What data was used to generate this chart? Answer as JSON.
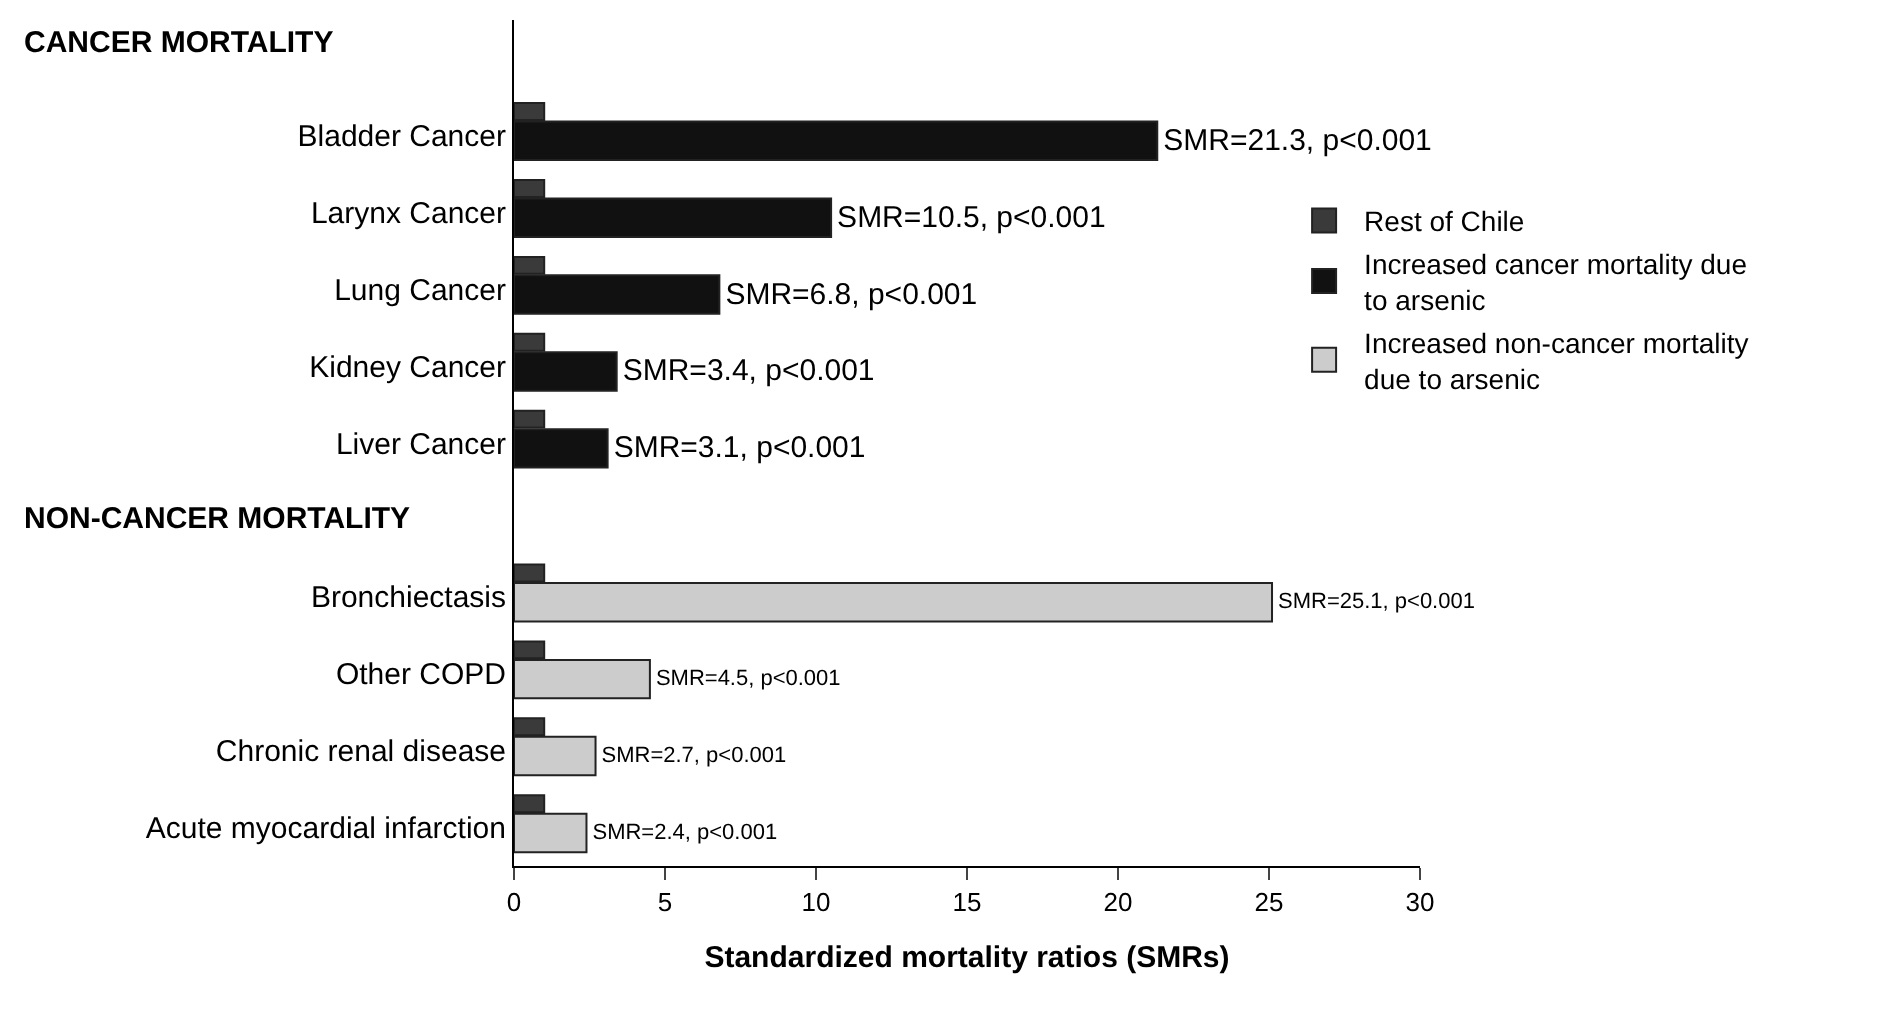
{
  "chart_data": {
    "type": "bar",
    "orientation": "horizontal",
    "xlabel": "Standardized mortality ratios (SMRs)",
    "categories": [
      "Bladder Cancer",
      "Larynx Cancer",
      "Lung Cancer",
      "Kidney Cancer",
      "Liver Cancer",
      null,
      "Bronchiectasis",
      "Other COPD",
      "Chronic renal disease",
      "Acute myocardial infarction"
    ],
    "series": [
      {
        "name": "Rest of Chile",
        "color": "#3a3a3a",
        "values": [
          1,
          1,
          1,
          1,
          1,
          null,
          1,
          1,
          1,
          1
        ]
      },
      {
        "name": "Increased cancer mortality due to arsenic",
        "color": "#111111",
        "values": [
          21.3,
          10.5,
          6.8,
          3.4,
          3.1,
          null,
          null,
          null,
          null,
          null
        ],
        "value_labels": [
          "SMR=21.3, p<0.001",
          "SMR=10.5, p<0.001",
          "SMR=6.8, p<0.001",
          "SMR=3.4, p<0.001",
          "SMR=3.1, p<0.001",
          null,
          null,
          null,
          null,
          null
        ]
      },
      {
        "name": "Increased non-cancer mortality due to arsenic",
        "color": "#cccccc",
        "values": [
          null,
          null,
          null,
          null,
          null,
          null,
          25.1,
          4.5,
          2.7,
          2.4
        ],
        "value_labels": [
          null,
          null,
          null,
          null,
          null,
          null,
          "SMR=25.1, p<0.001",
          "SMR=4.5, p<0.001",
          "SMR=2.7, p<0.001",
          "SMR=2.4, p<0.001"
        ]
      }
    ],
    "annotations": [
      "CANCER MORTALITY",
      "NON-CANCER MORTALITY"
    ],
    "xlim": [
      0,
      30
    ],
    "xticks": [
      0,
      5,
      10,
      15,
      20,
      25,
      30
    ],
    "legend": "right"
  }
}
